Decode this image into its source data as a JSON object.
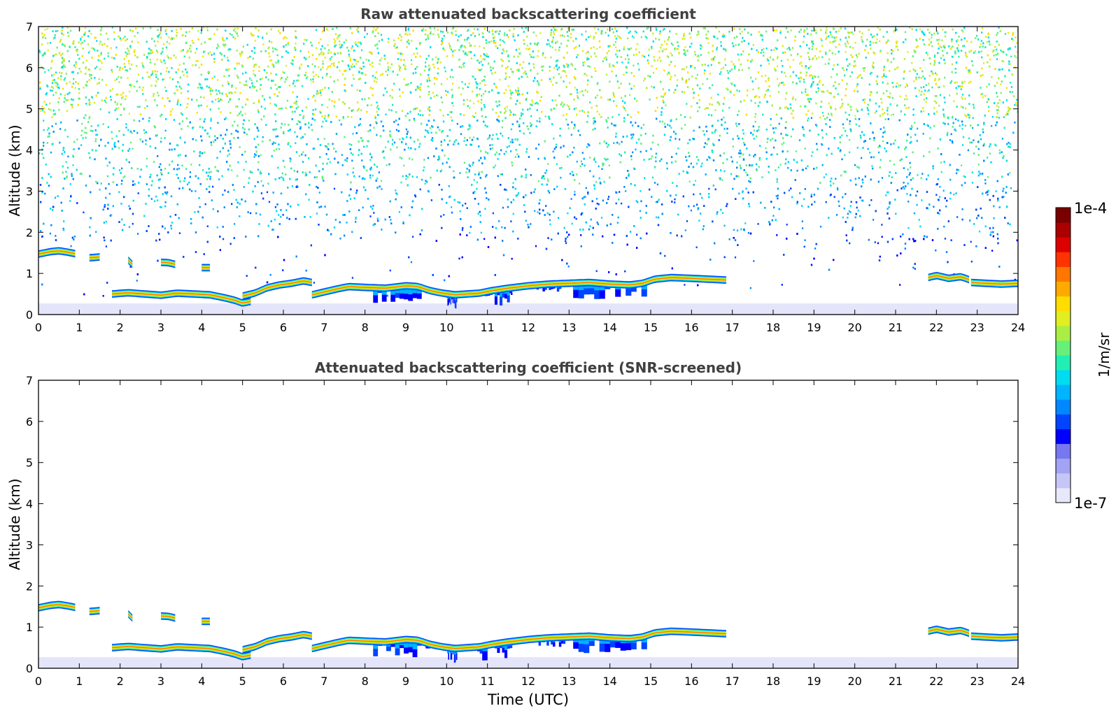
{
  "colors": {
    "colormap_low_to_high": [
      "#e8e8fb",
      "#c6c6f6",
      "#a3a3f3",
      "#7777f0",
      "#0000ff",
      "#0044ff",
      "#0088ff",
      "#00b4ff",
      "#00dcf0",
      "#22eeb4",
      "#66f07a",
      "#aaee44",
      "#e0ee22",
      "#ffdd00",
      "#ffaa00",
      "#ff7700",
      "#ff3300",
      "#dd0000",
      "#aa0000",
      "#7a0000"
    ],
    "axes": "#000000",
    "title_text": "#404040",
    "background_band": "#e4e4fa"
  },
  "chart_data": [
    {
      "type": "heatmap",
      "title": "Raw attenuated backscattering coefficient",
      "xlabel": "",
      "ylabel": "Altitude (km)",
      "xlim": [
        0,
        24
      ],
      "ylim": [
        0,
        7
      ],
      "x_ticks": [
        "0",
        "1",
        "2",
        "3",
        "4",
        "5",
        "6",
        "7",
        "8",
        "9",
        "10",
        "11",
        "12",
        "13",
        "14",
        "15",
        "16",
        "17",
        "18",
        "19",
        "20",
        "21",
        "22",
        "23",
        "24"
      ],
      "y_ticks": [
        "0",
        "1",
        "2",
        "3",
        "4",
        "5",
        "6",
        "7"
      ],
      "noise": "dense random speckle increasing with altitude (blue below 2.5 km, cyan-green 3-5 km, yellow-green above 5.5 km)",
      "surface_band_top_km": 0.27,
      "cloud_layers": [
        {
          "x": [
            0.0,
            0.3,
            0.5,
            0.7,
            0.9
          ],
          "y": [
            1.47,
            1.53,
            1.55,
            1.52,
            1.48
          ]
        },
        {
          "x": [
            1.25,
            1.5
          ],
          "y": [
            1.38,
            1.4
          ]
        },
        {
          "x": [
            2.2,
            2.3
          ],
          "y": [
            1.32,
            1.22
          ]
        },
        {
          "x": [
            3.0,
            3.2,
            3.35
          ],
          "y": [
            1.27,
            1.26,
            1.22
          ]
        },
        {
          "x": [
            4.0
          ],
          "y": [
            1.14
          ]
        },
        {
          "x": [
            1.8,
            2.2,
            2.6,
            3.0,
            3.4,
            3.8,
            4.2,
            4.5,
            4.8,
            5.0,
            5.2
          ],
          "y": [
            0.5,
            0.53,
            0.5,
            0.47,
            0.52,
            0.5,
            0.48,
            0.42,
            0.35,
            0.28,
            0.32
          ]
        },
        {
          "x": [
            5.0,
            5.3,
            5.6,
            5.9,
            6.2,
            6.5,
            6.7
          ],
          "y": [
            0.45,
            0.52,
            0.65,
            0.72,
            0.76,
            0.82,
            0.78
          ]
        },
        {
          "x": [
            6.7,
            7.0,
            7.3,
            7.6,
            8.0,
            8.5,
            9.0,
            9.3,
            9.6,
            9.9,
            10.2,
            10.5,
            10.8,
            11.1,
            11.5,
            12.0,
            12.5,
            13.0,
            13.5,
            14.0,
            14.5,
            14.8,
            15.1,
            15.5,
            16.0,
            16.4,
            16.85
          ],
          "y": [
            0.48,
            0.55,
            0.62,
            0.68,
            0.66,
            0.64,
            0.7,
            0.68,
            0.58,
            0.52,
            0.48,
            0.5,
            0.52,
            0.58,
            0.64,
            0.7,
            0.74,
            0.76,
            0.78,
            0.74,
            0.72,
            0.76,
            0.86,
            0.9,
            0.88,
            0.86,
            0.84
          ]
        },
        {
          "x": [
            21.8,
            22.0,
            22.3,
            22.6,
            22.8
          ],
          "y": [
            0.9,
            0.95,
            0.88,
            0.92,
            0.85
          ]
        },
        {
          "x": [
            22.85,
            23.2,
            23.6,
            24.0
          ],
          "y": [
            0.78,
            0.76,
            0.74,
            0.76
          ]
        }
      ],
      "drizzle_regions": [
        {
          "x": [
            8.2,
            9.7
          ],
          "top_km": 0.62,
          "bottom_km": 0.15
        },
        {
          "x": [
            10.0,
            10.25
          ],
          "top_km": 0.5,
          "bottom_km": 0.0
        },
        {
          "x": [
            10.75,
            11.6
          ],
          "top_km": 0.6,
          "bottom_km": 0.05
        },
        {
          "x": [
            12.2,
            12.9
          ],
          "top_km": 0.72,
          "bottom_km": 0.45
        },
        {
          "x": [
            13.1,
            14.9
          ],
          "top_km": 0.76,
          "bottom_km": 0.15
        }
      ]
    },
    {
      "type": "heatmap",
      "title": "Attenuated backscattering coefficient (SNR-screened)",
      "xlabel": "Time (UTC)",
      "ylabel": "Altitude (km)",
      "xlim": [
        0,
        24
      ],
      "ylim": [
        0,
        7
      ],
      "x_ticks": [
        "0",
        "1",
        "2",
        "3",
        "4",
        "5",
        "6",
        "7",
        "8",
        "9",
        "10",
        "11",
        "12",
        "13",
        "14",
        "15",
        "16",
        "17",
        "18",
        "19",
        "20",
        "21",
        "22",
        "23",
        "24"
      ],
      "y_ticks": [
        "0",
        "1",
        "2",
        "3",
        "4",
        "5",
        "6",
        "7"
      ],
      "noise": "none (screened)",
      "surface_band_top_km": 0.27,
      "cloud_layers": "same as raw panel",
      "drizzle_regions": "same as raw panel"
    }
  ],
  "colorbar": {
    "label": "1/m/sr",
    "max_label": "1e-4",
    "min_label": "1e-7",
    "scale": "log"
  }
}
